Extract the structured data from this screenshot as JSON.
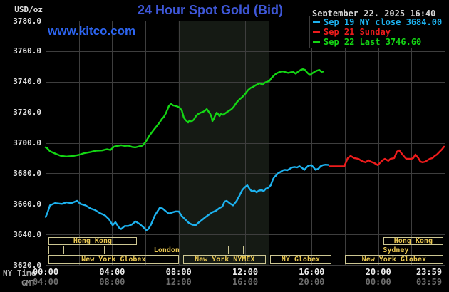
{
  "header": {
    "units_label": "USD/oz",
    "title": "24 Hour Spot Gold (Bid)",
    "datetime": "September 22, 2025 16:40",
    "watermark": "www.kitco.com"
  },
  "legend": {
    "items": [
      {
        "label": "Sep 19 NY close 3684.00",
        "color": "#1db2ef"
      },
      {
        "label": "Sep 21 Sunday",
        "color": "#ee1c1c"
      },
      {
        "label": "Sep 22 Last 3746.60",
        "color": "#14d614"
      }
    ]
  },
  "colors": {
    "background": "#000000",
    "title_blue": "#3e57d8",
    "kitco_blue": "#2d65f1",
    "date_text": "#d6d6d6",
    "axis_text": "#e2e2e2",
    "ny_time_label": "#bcbcbc",
    "gmt_text": "#6d6d6d",
    "gmt_label": "#8f8f8f",
    "grid": "#3e3e3e",
    "band": "#151a14",
    "session_border": "#cdc793",
    "session_label": "#e9c750"
  },
  "axes": {
    "y_label": "USD/oz",
    "y_ticks": [
      "3780.0",
      "3760.0",
      "3740.0",
      "3720.0",
      "3700.0",
      "3680.0",
      "3660.0",
      "3640.0",
      "3620.0"
    ],
    "x_row1_label": "NY Time",
    "x_row2_label": "GMT",
    "x_row1": [
      "00:00",
      "04:00",
      "08:00",
      "12:00",
      "16:00",
      "20:00",
      "23:59"
    ],
    "x_row2": [
      "04:00",
      "08:00",
      "12:00",
      "16:00",
      "20:00",
      "00:00",
      "03:59"
    ],
    "tick_hours": [
      0,
      4,
      8,
      12,
      16,
      20,
      23.983
    ]
  },
  "sessions": {
    "rows": [
      {
        "boxes": [
          {
            "label": "Hong Kong",
            "t0": 0.15,
            "t1": 5.5
          },
          {
            "label": "Hong Kong",
            "t0": 20.3,
            "t1": 23.92
          }
        ]
      },
      {
        "boxes": [
          {
            "label": "",
            "t0": 0.15,
            "t1": 1.05
          },
          {
            "label": "",
            "t0": 1.05,
            "t1": 3.56
          },
          {
            "label": "London",
            "t0": 3.56,
            "t1": 11.0
          },
          {
            "label": "",
            "t0": 11.0,
            "t1": 11.9
          },
          {
            "label": "Sydney",
            "t0": 18.2,
            "t1": 23.92
          }
        ]
      },
      {
        "boxes": [
          {
            "label": "New York Globex",
            "t0": 0.15,
            "t1": 8.02
          },
          {
            "label": "New York NYMEX",
            "t0": 8.28,
            "t1": 13.26
          },
          {
            "label": "NY Globex",
            "t0": 13.48,
            "t1": 17.2
          },
          {
            "label": "New York Globex",
            "t0": 17.98,
            "t1": 23.92
          }
        ]
      }
    ]
  },
  "chart_data": {
    "type": "line",
    "title": "24 Hour Spot Gold (Bid)",
    "xlabel": "NY Time (hours, 00:00-23:59)",
    "ylabel": "USD/oz",
    "x_range_hours": [
      0,
      24
    ],
    "ylim": [
      3620,
      3780
    ],
    "y_grid_step": 20,
    "x_grid_step_hours": 2,
    "grid": true,
    "legend_position": "top-right",
    "shaded_band_hours": [
      8.0,
      13.45
    ],
    "series": [
      {
        "name": "Sep 19 NY close 3684.00",
        "color": "#1db2ef",
        "points": [
          [
            0.0,
            3651.5
          ],
          [
            0.09,
            3653.5
          ],
          [
            0.26,
            3659.0
          ],
          [
            0.56,
            3660.5
          ],
          [
            0.99,
            3660.0
          ],
          [
            1.24,
            3661.0
          ],
          [
            1.54,
            3660.5
          ],
          [
            1.89,
            3662.0
          ],
          [
            2.1,
            3660.0
          ],
          [
            2.4,
            3659.0
          ],
          [
            2.7,
            3657.0
          ],
          [
            2.96,
            3656.0
          ],
          [
            3.26,
            3654.0
          ],
          [
            3.56,
            3652.5
          ],
          [
            3.81,
            3650.0
          ],
          [
            4.03,
            3646.0
          ],
          [
            4.2,
            3648.0
          ],
          [
            4.41,
            3644.5
          ],
          [
            4.54,
            3643.5
          ],
          [
            4.76,
            3645.5
          ],
          [
            4.97,
            3645.5
          ],
          [
            5.19,
            3646.5
          ],
          [
            5.4,
            3648.5
          ],
          [
            5.63,
            3647.0
          ],
          [
            5.85,
            3645.0
          ],
          [
            6.06,
            3642.7
          ],
          [
            6.17,
            3643.5
          ],
          [
            6.34,
            3646.5
          ],
          [
            6.56,
            3652.3
          ],
          [
            6.69,
            3654.5
          ],
          [
            6.86,
            3657.4
          ],
          [
            7.03,
            3657.0
          ],
          [
            7.24,
            3655.1
          ],
          [
            7.41,
            3653.7
          ],
          [
            7.67,
            3654.6
          ],
          [
            7.84,
            3655.1
          ],
          [
            8.01,
            3655.0
          ],
          [
            8.19,
            3652.0
          ],
          [
            8.4,
            3649.8
          ],
          [
            8.61,
            3647.5
          ],
          [
            8.83,
            3646.3
          ],
          [
            9.04,
            3646.1
          ],
          [
            9.17,
            3647.5
          ],
          [
            9.34,
            3648.9
          ],
          [
            9.6,
            3651.2
          ],
          [
            9.77,
            3652.6
          ],
          [
            10.03,
            3654.5
          ],
          [
            10.24,
            3655.5
          ],
          [
            10.46,
            3657.3
          ],
          [
            10.63,
            3658.2
          ],
          [
            10.76,
            3661.5
          ],
          [
            10.89,
            3662.0
          ],
          [
            11.06,
            3660.5
          ],
          [
            11.27,
            3659.0
          ],
          [
            11.49,
            3662.0
          ],
          [
            11.66,
            3665.5
          ],
          [
            11.83,
            3669.1
          ],
          [
            11.96,
            3670.7
          ],
          [
            12.13,
            3672.2
          ],
          [
            12.26,
            3669.9
          ],
          [
            12.39,
            3668.3
          ],
          [
            12.56,
            3668.6
          ],
          [
            12.69,
            3667.6
          ],
          [
            12.81,
            3668.6
          ],
          [
            12.99,
            3669.1
          ],
          [
            13.11,
            3668.3
          ],
          [
            13.24,
            3669.9
          ],
          [
            13.41,
            3670.7
          ],
          [
            13.54,
            3672.2
          ],
          [
            13.67,
            3676.1
          ],
          [
            13.76,
            3677.7
          ],
          [
            13.84,
            3678.4
          ],
          [
            13.97,
            3680.0
          ],
          [
            14.1,
            3680.8
          ],
          [
            14.27,
            3682.0
          ],
          [
            14.4,
            3682.3
          ],
          [
            14.53,
            3682.0
          ],
          [
            14.7,
            3683.1
          ],
          [
            14.83,
            3683.9
          ],
          [
            14.96,
            3684.2
          ],
          [
            15.13,
            3683.9
          ],
          [
            15.26,
            3684.7
          ],
          [
            15.39,
            3683.9
          ],
          [
            15.56,
            3682.3
          ],
          [
            15.69,
            3683.9
          ],
          [
            15.81,
            3685.1
          ],
          [
            15.99,
            3685.4
          ],
          [
            16.11,
            3683.9
          ],
          [
            16.24,
            3682.3
          ],
          [
            16.41,
            3683.1
          ],
          [
            16.54,
            3684.7
          ],
          [
            16.67,
            3685.4
          ],
          [
            16.84,
            3685.7
          ],
          [
            17.01,
            3685.5
          ]
        ]
      },
      {
        "name": "Sep 21 Sunday",
        "color": "#ee1c1c",
        "points": [
          [
            17.06,
            3684.6
          ],
          [
            17.3,
            3684.6
          ],
          [
            17.6,
            3684.6
          ],
          [
            17.96,
            3684.6
          ],
          [
            18.05,
            3687.0
          ],
          [
            18.17,
            3690.0
          ],
          [
            18.34,
            3691.4
          ],
          [
            18.56,
            3690.0
          ],
          [
            18.81,
            3689.5
          ],
          [
            18.99,
            3688.2
          ],
          [
            19.24,
            3687.2
          ],
          [
            19.41,
            3688.6
          ],
          [
            19.54,
            3687.7
          ],
          [
            19.76,
            3686.8
          ],
          [
            19.97,
            3685.4
          ],
          [
            20.1,
            3686.8
          ],
          [
            20.27,
            3688.6
          ],
          [
            20.4,
            3689.5
          ],
          [
            20.61,
            3688.2
          ],
          [
            20.74,
            3689.5
          ],
          [
            20.96,
            3690.0
          ],
          [
            21.13,
            3694.2
          ],
          [
            21.26,
            3695.1
          ],
          [
            21.39,
            3693.3
          ],
          [
            21.56,
            3691.0
          ],
          [
            21.69,
            3689.5
          ],
          [
            21.99,
            3689.5
          ],
          [
            22.11,
            3690.0
          ],
          [
            22.24,
            3692.3
          ],
          [
            22.41,
            3690.0
          ],
          [
            22.54,
            3687.7
          ],
          [
            22.67,
            3687.2
          ],
          [
            22.84,
            3687.7
          ],
          [
            22.97,
            3688.6
          ],
          [
            23.1,
            3689.5
          ],
          [
            23.27,
            3690.0
          ],
          [
            23.4,
            3691.4
          ],
          [
            23.53,
            3692.3
          ],
          [
            23.7,
            3694.2
          ],
          [
            23.83,
            3695.6
          ],
          [
            23.96,
            3697.5
          ]
        ]
      },
      {
        "name": "Sep 22 Last 3746.60",
        "color": "#14d614",
        "points": [
          [
            0.0,
            3697.0
          ],
          [
            0.09,
            3696.5
          ],
          [
            0.26,
            3694.5
          ],
          [
            0.56,
            3693.0
          ],
          [
            0.9,
            3691.5
          ],
          [
            1.24,
            3691.0
          ],
          [
            1.54,
            3691.3
          ],
          [
            1.76,
            3691.6
          ],
          [
            1.97,
            3692.0
          ],
          [
            2.31,
            3693.2
          ],
          [
            2.7,
            3694.0
          ],
          [
            3.04,
            3694.8
          ],
          [
            3.39,
            3695.0
          ],
          [
            3.69,
            3695.8
          ],
          [
            3.9,
            3695.3
          ],
          [
            4.11,
            3697.5
          ],
          [
            4.33,
            3698.0
          ],
          [
            4.54,
            3698.4
          ],
          [
            4.76,
            3698.0
          ],
          [
            4.97,
            3698.2
          ],
          [
            5.19,
            3697.3
          ],
          [
            5.4,
            3697.0
          ],
          [
            5.61,
            3697.6
          ],
          [
            5.83,
            3698.2
          ],
          [
            6.04,
            3701.0
          ],
          [
            6.26,
            3705.0
          ],
          [
            6.47,
            3708.0
          ],
          [
            6.69,
            3711.0
          ],
          [
            6.86,
            3713.5
          ],
          [
            6.99,
            3715.6
          ],
          [
            7.11,
            3717.0
          ],
          [
            7.24,
            3719.5
          ],
          [
            7.41,
            3724.0
          ],
          [
            7.54,
            3725.5
          ],
          [
            7.67,
            3724.5
          ],
          [
            7.8,
            3724.2
          ],
          [
            7.93,
            3723.8
          ],
          [
            8.06,
            3723.0
          ],
          [
            8.19,
            3721.2
          ],
          [
            8.31,
            3716.5
          ],
          [
            8.4,
            3715.1
          ],
          [
            8.49,
            3714.2
          ],
          [
            8.57,
            3713.3
          ],
          [
            8.66,
            3714.7
          ],
          [
            8.74,
            3713.7
          ],
          [
            8.91,
            3715.1
          ],
          [
            9.04,
            3717.5
          ],
          [
            9.17,
            3718.9
          ],
          [
            9.34,
            3719.8
          ],
          [
            9.47,
            3720.3
          ],
          [
            9.6,
            3721.2
          ],
          [
            9.69,
            3722.1
          ],
          [
            9.81,
            3720.3
          ],
          [
            9.9,
            3718.9
          ],
          [
            9.99,
            3716.5
          ],
          [
            10.03,
            3714.2
          ],
          [
            10.11,
            3715.6
          ],
          [
            10.2,
            3718.0
          ],
          [
            10.29,
            3719.8
          ],
          [
            10.37,
            3718.9
          ],
          [
            10.46,
            3717.5
          ],
          [
            10.54,
            3718.9
          ],
          [
            10.67,
            3718.4
          ],
          [
            10.8,
            3719.3
          ],
          [
            10.93,
            3720.3
          ],
          [
            11.06,
            3721.2
          ],
          [
            11.19,
            3722.1
          ],
          [
            11.31,
            3723.5
          ],
          [
            11.49,
            3726.5
          ],
          [
            11.66,
            3728.5
          ],
          [
            11.83,
            3730.0
          ],
          [
            12.0,
            3732.0
          ],
          [
            12.17,
            3734.5
          ],
          [
            12.34,
            3736.0
          ],
          [
            12.47,
            3736.6
          ],
          [
            12.6,
            3737.5
          ],
          [
            12.77,
            3738.5
          ],
          [
            12.9,
            3739.0
          ],
          [
            13.03,
            3738.0
          ],
          [
            13.2,
            3739.5
          ],
          [
            13.33,
            3740.0
          ],
          [
            13.46,
            3740.6
          ],
          [
            13.59,
            3742.5
          ],
          [
            13.76,
            3744.4
          ],
          [
            13.89,
            3745.5
          ],
          [
            14.06,
            3746.3
          ],
          [
            14.19,
            3746.8
          ],
          [
            14.31,
            3746.7
          ],
          [
            14.49,
            3746.0
          ],
          [
            14.61,
            3745.8
          ],
          [
            14.74,
            3746.2
          ],
          [
            14.91,
            3746.3
          ],
          [
            15.04,
            3745.3
          ],
          [
            15.17,
            3746.5
          ],
          [
            15.34,
            3747.7
          ],
          [
            15.47,
            3748.2
          ],
          [
            15.6,
            3747.7
          ],
          [
            15.73,
            3746.0
          ],
          [
            15.9,
            3744.4
          ],
          [
            16.03,
            3745.5
          ],
          [
            16.2,
            3746.7
          ],
          [
            16.33,
            3747.3
          ],
          [
            16.46,
            3747.7
          ],
          [
            16.59,
            3746.5
          ],
          [
            16.67,
            3746.6
          ]
        ]
      }
    ]
  }
}
